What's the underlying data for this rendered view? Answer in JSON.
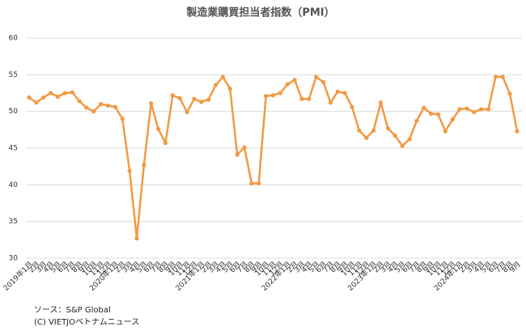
{
  "chart_data": {
    "type": "line",
    "title": "製造業購買担当者指数（PMI）",
    "categories": [
      "2019年1月",
      "2月",
      "3月",
      "4月",
      "5月",
      "6月",
      "7月",
      "8月",
      "9月",
      "10月",
      "11月",
      "12月",
      "2020年1月",
      "2月",
      "3月",
      "4月",
      "5月",
      "6月",
      "7月",
      "8月",
      "9月",
      "10月",
      "11月",
      "12月",
      "2021年1月",
      "2月",
      "3月",
      "4月",
      "5月",
      "6月",
      "7月",
      "8月",
      "9月",
      "10月",
      "11月",
      "12月",
      "2022年1月",
      "2月",
      "3月",
      "4月",
      "5月",
      "6月",
      "7月",
      "8月",
      "9月",
      "10月",
      "11月",
      "12月",
      "2023年1月",
      "2月",
      "3月",
      "4月",
      "5月",
      "6月",
      "7月",
      "8月",
      "9月",
      "10月",
      "11月",
      "12月",
      "2024年1月",
      "2月",
      "3月",
      "4月",
      "5月",
      "6月",
      "7月",
      "8月",
      "9月"
    ],
    "series": [
      {
        "color": "#f09a44",
        "values": [
          51.9,
          51.2,
          51.9,
          52.5,
          52.0,
          52.5,
          52.6,
          51.4,
          50.5,
          50.0,
          51.0,
          50.8,
          50.6,
          49.0,
          41.9,
          32.7,
          42.7,
          51.1,
          47.6,
          45.7,
          52.2,
          51.8,
          49.9,
          51.7,
          51.3,
          51.6,
          53.6,
          54.7,
          53.1,
          44.1,
          45.1,
          40.2,
          40.2,
          52.1,
          52.2,
          52.5,
          53.7,
          54.3,
          51.7,
          51.7,
          54.7,
          54.0,
          51.2,
          52.7,
          52.5,
          50.6,
          47.4,
          46.4,
          47.4,
          51.2,
          47.7,
          46.7,
          45.3,
          46.2,
          48.7,
          50.5,
          49.7,
          49.6,
          47.3,
          48.9,
          50.3,
          50.4,
          49.9,
          50.3,
          50.3,
          54.7,
          54.7,
          52.4,
          47.3
        ]
      }
    ],
    "ylim": [
      30,
      60
    ],
    "yticks": [
      30,
      35,
      40,
      45,
      50,
      55,
      60
    ],
    "grid": true,
    "source": [
      "ソース：S&P Global",
      "(C) VIETJOベトナムニュース"
    ]
  }
}
